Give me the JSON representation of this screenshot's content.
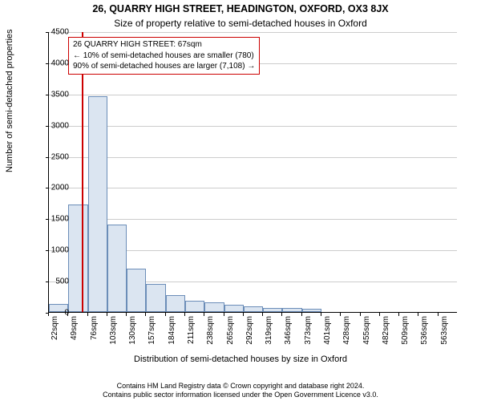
{
  "chart": {
    "title_main": "26, QUARRY HIGH STREET, HEADINGTON, OXFORD, OX3 8JX",
    "title_sub": "Size of property relative to semi-detached houses in Oxford",
    "ylabel": "Number of semi-detached properties",
    "xlabel": "Distribution of semi-detached houses by size in Oxford",
    "ylim": [
      0,
      4500
    ],
    "ytick_step": 500,
    "ytick_labels": [
      "0",
      "500",
      "1000",
      "1500",
      "2000",
      "2500",
      "3000",
      "3500",
      "4000",
      "4500"
    ],
    "xtick_labels": [
      "22sqm",
      "49sqm",
      "76sqm",
      "103sqm",
      "130sqm",
      "157sqm",
      "184sqm",
      "211sqm",
      "238sqm",
      "265sqm",
      "292sqm",
      "319sqm",
      "346sqm",
      "373sqm",
      "401sqm",
      "428sqm",
      "455sqm",
      "482sqm",
      "509sqm",
      "536sqm",
      "563sqm"
    ],
    "bar_values": [
      130,
      1720,
      3460,
      1400,
      700,
      450,
      270,
      180,
      150,
      120,
      90,
      70,
      60,
      55,
      0,
      0,
      0,
      0,
      0,
      0,
      0
    ],
    "bar_fill": "#dbe5f1",
    "bar_stroke": "#6b8db8",
    "grid_color": "#cccccc",
    "background_color": "#ffffff",
    "marker_value": 67,
    "x_range": [
      22,
      576
    ],
    "marker_color": "#cc0000",
    "title_fontsize": 12.5,
    "label_fontsize": 11,
    "tick_fontsize": 10
  },
  "legend": {
    "line1": "26 QUARRY HIGH STREET: 67sqm",
    "line2": "← 10% of semi-detached houses are smaller (780)",
    "line3": "90% of semi-detached houses are larger (7,108) →"
  },
  "footer": {
    "line1": "Contains HM Land Registry data © Crown copyright and database right 2024.",
    "line2": "Contains public sector information licensed under the Open Government Licence v3.0."
  }
}
